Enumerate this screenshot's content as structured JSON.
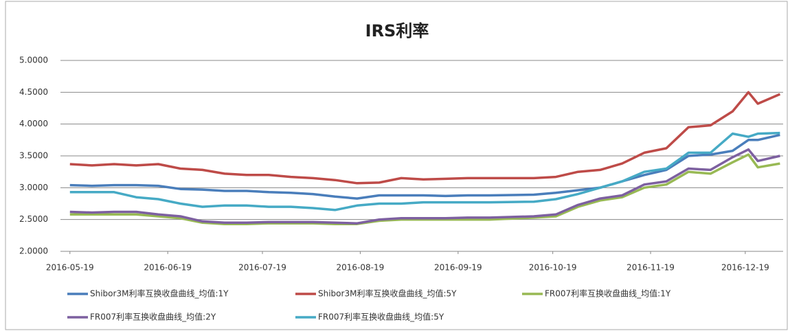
{
  "chart_data": {
    "type": "line",
    "title": "IRS利率",
    "x": [
      "2016-05-19",
      "2016-05-26",
      "2016-06-02",
      "2016-06-09",
      "2016-06-16",
      "2016-06-23",
      "2016-06-30",
      "2016-07-07",
      "2016-07-14",
      "2016-07-21",
      "2016-07-28",
      "2016-08-04",
      "2016-08-11",
      "2016-08-18",
      "2016-08-25",
      "2016-09-01",
      "2016-09-08",
      "2016-09-15",
      "2016-09-22",
      "2016-09-29",
      "2016-10-13",
      "2016-10-20",
      "2016-10-27",
      "2016-11-03",
      "2016-11-10",
      "2016-11-17",
      "2016-11-24",
      "2016-12-01",
      "2016-12-08",
      "2016-12-15",
      "2016-12-20",
      "2016-12-23",
      "2016-12-30"
    ],
    "series": [
      {
        "name": "Shibor3M利率互换收盘曲线_均值:1Y",
        "color": "#4a7ebb",
        "values": [
          3.04,
          3.03,
          3.04,
          3.04,
          3.03,
          2.98,
          2.97,
          2.95,
          2.95,
          2.93,
          2.92,
          2.9,
          2.86,
          2.83,
          2.88,
          2.88,
          2.88,
          2.87,
          2.88,
          2.88,
          2.89,
          2.92,
          2.96,
          3.0,
          3.1,
          3.2,
          3.28,
          3.5,
          3.52,
          3.58,
          3.75,
          3.75,
          3.83
        ]
      },
      {
        "name": "Shibor3M利率互换收盘曲线_均值:5Y",
        "color": "#be4b48",
        "values": [
          3.37,
          3.35,
          3.37,
          3.35,
          3.37,
          3.3,
          3.28,
          3.22,
          3.2,
          3.2,
          3.17,
          3.15,
          3.12,
          3.07,
          3.08,
          3.15,
          3.13,
          3.14,
          3.15,
          3.15,
          3.15,
          3.17,
          3.25,
          3.28,
          3.38,
          3.55,
          3.62,
          3.95,
          3.98,
          4.2,
          4.5,
          4.32,
          4.47
        ]
      },
      {
        "name": "FR007利率互换收盘曲线_均值:1Y",
        "color": "#98b954",
        "values": [
          2.58,
          2.58,
          2.58,
          2.58,
          2.55,
          2.52,
          2.45,
          2.43,
          2.43,
          2.44,
          2.44,
          2.44,
          2.43,
          2.43,
          2.48,
          2.5,
          2.5,
          2.5,
          2.5,
          2.5,
          2.53,
          2.55,
          2.7,
          2.8,
          2.85,
          3.0,
          3.05,
          3.25,
          3.22,
          3.4,
          3.52,
          3.32,
          3.38
        ]
      },
      {
        "name": "FR007利率互换收盘曲线_均值:2Y",
        "color": "#7d60a0",
        "values": [
          2.62,
          2.61,
          2.62,
          2.62,
          2.58,
          2.55,
          2.47,
          2.45,
          2.45,
          2.46,
          2.46,
          2.46,
          2.45,
          2.44,
          2.5,
          2.52,
          2.52,
          2.52,
          2.53,
          2.53,
          2.55,
          2.58,
          2.73,
          2.83,
          2.88,
          3.05,
          3.1,
          3.3,
          3.28,
          3.48,
          3.6,
          3.42,
          3.5
        ]
      },
      {
        "name": "FR007利率互换收盘曲线_均值:5Y",
        "color": "#46aac5",
        "values": [
          2.93,
          2.93,
          2.93,
          2.85,
          2.82,
          2.75,
          2.7,
          2.72,
          2.72,
          2.7,
          2.7,
          2.68,
          2.65,
          2.72,
          2.75,
          2.75,
          2.77,
          2.77,
          2.77,
          2.77,
          2.78,
          2.82,
          2.9,
          3.0,
          3.1,
          3.25,
          3.3,
          3.55,
          3.55,
          3.85,
          3.8,
          3.85,
          3.86
        ]
      }
    ],
    "xlim": [
      "2016-05-16",
      "2016-12-31"
    ],
    "xticks": [
      "2016-05-19",
      "2016-06-19",
      "2016-07-19",
      "2016-08-19",
      "2016-09-19",
      "2016-10-19",
      "2016-11-19",
      "2016-12-19"
    ],
    "ylim": [
      2,
      5
    ],
    "yticks": [
      {
        "value": 2,
        "label": "2.0000"
      },
      {
        "value": 2.5,
        "label": "2.5000"
      },
      {
        "value": 3,
        "label": "3.0000"
      },
      {
        "value": 3.5,
        "label": "3.5000"
      },
      {
        "value": 4,
        "label": "4.0000"
      },
      {
        "value": 4.5,
        "label": "4.5000"
      },
      {
        "value": 5,
        "label": "5.0000"
      }
    ],
    "grid": true
  }
}
